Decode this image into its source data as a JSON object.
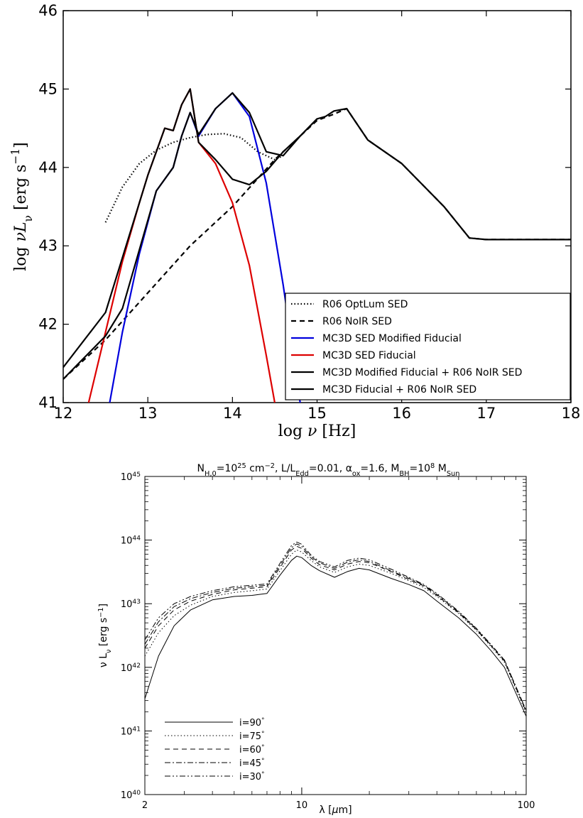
{
  "chart_data": [
    {
      "type": "line",
      "xlabel": "log ν [Hz]",
      "ylabel": "log νL_ν [erg s^-1]",
      "xlim": [
        12,
        18
      ],
      "ylim": [
        41,
        46
      ],
      "xticks": [
        "12",
        "13",
        "14",
        "15",
        "16",
        "17",
        "18"
      ],
      "yticks": [
        "41",
        "42",
        "43",
        "44",
        "45",
        "46"
      ],
      "legend_position": "lower-right",
      "series": [
        {
          "name": "R06 OptLum SED",
          "color": "#000000",
          "style": "dotted",
          "x": [
            12.5,
            12.7,
            12.9,
            13.1,
            13.3,
            13.5,
            13.7,
            13.9,
            14.1,
            14.3,
            14.5,
            14.6
          ],
          "y": [
            43.3,
            43.75,
            44.05,
            44.22,
            44.32,
            44.38,
            44.42,
            44.43,
            44.38,
            44.2,
            44.1,
            44.15
          ]
        },
        {
          "name": "R06 NoIR SED",
          "color": "#000000",
          "style": "dashed",
          "x": [
            12.0,
            12.5,
            13.0,
            13.5,
            14.0,
            14.5,
            15.0,
            15.2,
            15.35,
            15.6,
            16.0,
            16.5,
            16.8,
            17.0,
            18.0
          ],
          "y": [
            41.3,
            41.8,
            42.4,
            43.0,
            43.5,
            44.1,
            44.6,
            44.68,
            44.75,
            44.35,
            44.05,
            43.5,
            43.1,
            43.08,
            43.08
          ]
        },
        {
          "name": "MC3D SED Modified Fiducial",
          "color": "#0000dd",
          "style": "solid",
          "x": [
            12.55,
            12.7,
            12.9,
            13.1,
            13.3,
            13.4,
            13.5,
            13.6,
            13.8,
            14.0,
            14.2,
            14.4,
            14.6,
            14.8
          ],
          "y": [
            41.0,
            41.9,
            42.9,
            43.7,
            44.0,
            44.4,
            44.7,
            44.4,
            44.75,
            44.95,
            44.65,
            43.8,
            42.5,
            41.0
          ]
        },
        {
          "name": "MC3D SED Fiducial",
          "color": "#dd0000",
          "style": "solid",
          "x": [
            12.3,
            12.5,
            12.7,
            12.9,
            13.0,
            13.1,
            13.2,
            13.3,
            13.4,
            13.5,
            13.6,
            13.8,
            14.0,
            14.2,
            14.4,
            14.5
          ],
          "y": [
            41.0,
            41.9,
            42.8,
            43.55,
            43.9,
            44.2,
            44.5,
            44.47,
            44.8,
            45.0,
            44.32,
            44.05,
            43.55,
            42.75,
            41.6,
            41.0
          ]
        },
        {
          "name": "MC3D Modified Fiducial + R06 NoIR SED",
          "color": "#000000",
          "style": "solid",
          "x": [
            12.0,
            12.5,
            12.7,
            12.9,
            13.1,
            13.3,
            13.4,
            13.5,
            13.6,
            13.8,
            14.0,
            14.2,
            14.4,
            14.6,
            14.8,
            15.0,
            15.1,
            15.2,
            15.35,
            15.6,
            16.0,
            16.5,
            16.8,
            17.0,
            18.0
          ],
          "y": [
            41.3,
            41.85,
            42.2,
            42.95,
            43.7,
            44.0,
            44.4,
            44.7,
            44.42,
            44.75,
            44.95,
            44.7,
            44.2,
            44.15,
            44.4,
            44.62,
            44.65,
            44.72,
            44.75,
            44.35,
            44.05,
            43.5,
            43.1,
            43.08,
            43.08
          ]
        },
        {
          "name": "MC3D Fiducial + R06 NoIR SED",
          "color": "#000000",
          "style": "solid",
          "x": [
            12.0,
            12.5,
            12.7,
            12.9,
            13.0,
            13.1,
            13.2,
            13.3,
            13.4,
            13.5,
            13.6,
            13.8,
            14.0,
            14.2,
            14.4,
            14.6,
            14.8,
            15.0
          ],
          "y": [
            41.45,
            42.15,
            42.85,
            43.55,
            43.9,
            44.2,
            44.5,
            44.47,
            44.8,
            45.0,
            44.32,
            44.1,
            43.85,
            43.78,
            43.95,
            44.2,
            44.4,
            44.62
          ]
        }
      ]
    },
    {
      "type": "line",
      "title": "N_H,0=10^25 cm^-2, L/L_Edd=0.01, α_ox=1.6, M_BH=10^8 M_Sun",
      "xlabel": "λ [μm]",
      "ylabel": "ν L_ν [erg s^-1]",
      "xscale": "log",
      "yscale": "log",
      "xlim": [
        2,
        100
      ],
      "ylim": [
        1e+40,
        1e+45
      ],
      "xticks": [
        "2",
        "10",
        "100"
      ],
      "yticks": [
        "10^40",
        "10^41",
        "10^42",
        "10^43",
        "10^44",
        "10^45"
      ],
      "legend_position": "lower-left",
      "series": [
        {
          "name": "i=90°",
          "style": "solid",
          "x": [
            2,
            2.3,
            2.7,
            3.2,
            4,
            5,
            6,
            7,
            8,
            9,
            9.5,
            10,
            11,
            12,
            14,
            16,
            18,
            20,
            25,
            30,
            35,
            40,
            50,
            60,
            70,
            80,
            100
          ],
          "y": [
            3.2e+41,
            1.5e+42,
            4.5e+42,
            8e+42,
            1.15e+43,
            1.3e+43,
            1.35e+43,
            1.45e+43,
            2.8e+43,
            4.8e+43,
            5.6e+43,
            5.3e+43,
            4e+43,
            3.3e+43,
            2.6e+43,
            3.2e+43,
            3.6e+43,
            3.4e+43,
            2.5e+43,
            2e+43,
            1.6e+43,
            1.1e+43,
            6e+42,
            3.3e+42,
            1.8e+42,
            1e+42,
            1.7e+41
          ]
        },
        {
          "name": "i=75°",
          "style": "dotted",
          "x": [
            2,
            2.3,
            2.7,
            3.2,
            4,
            5,
            6,
            7,
            8,
            9,
            9.5,
            10,
            11,
            12,
            14,
            16,
            18,
            20,
            25,
            30,
            35,
            40,
            50,
            60,
            70,
            80,
            100
          ],
          "y": [
            1.5e+42,
            3.5e+42,
            6.5e+42,
            9.5e+42,
            1.3e+43,
            1.5e+43,
            1.6e+43,
            1.7e+43,
            3.3e+43,
            6e+43,
            7e+43,
            6.5e+43,
            4.8e+43,
            3.8e+43,
            3.1e+43,
            3.8e+43,
            4.2e+43,
            4e+43,
            3e+43,
            2.3e+43,
            1.8e+43,
            1.3e+43,
            7e+42,
            3.8e+42,
            2.1e+42,
            1.2e+42,
            1.9e+41
          ]
        },
        {
          "name": "i=60°",
          "style": "dashed",
          "x": [
            2,
            2.3,
            2.7,
            3.2,
            4,
            5,
            6,
            7,
            8,
            9,
            9.5,
            10,
            11,
            12,
            14,
            16,
            18,
            20,
            25,
            30,
            35,
            40,
            50,
            60,
            70,
            80,
            100
          ],
          "y": [
            2e+42,
            4.5e+42,
            8e+42,
            1.1e+43,
            1.4e+43,
            1.65e+43,
            1.75e+43,
            1.85e+43,
            3.7e+43,
            7e+43,
            8e+43,
            7.4e+43,
            5.2e+43,
            4.1e+43,
            3.4e+43,
            4.2e+43,
            4.6e+43,
            4.4e+43,
            3.2e+43,
            2.4e+43,
            1.9e+43,
            1.35e+43,
            7.2e+42,
            3.9e+42,
            2.15e+42,
            1.25e+42,
            2e+41
          ]
        },
        {
          "name": "i=45°",
          "style": "dashdot",
          "x": [
            2,
            2.3,
            2.7,
            3.2,
            4,
            5,
            6,
            7,
            8,
            9,
            9.5,
            10,
            11,
            12,
            14,
            16,
            18,
            20,
            25,
            30,
            35,
            40,
            50,
            60,
            70,
            80,
            100
          ],
          "y": [
            2.3e+42,
            5.2e+42,
            9e+42,
            1.2e+43,
            1.5e+43,
            1.75e+43,
            1.85e+43,
            1.95e+43,
            4e+43,
            7.6e+43,
            8.7e+43,
            8e+43,
            5.5e+43,
            4.4e+43,
            3.6e+43,
            4.5e+43,
            4.9e+43,
            4.6e+43,
            3.3e+43,
            2.5e+43,
            1.95e+43,
            1.4e+43,
            7.4e+42,
            4e+42,
            2.2e+42,
            1.3e+42,
            2.1e+41
          ]
        },
        {
          "name": "i=30°",
          "style": "dashdotdot",
          "x": [
            2,
            2.3,
            2.7,
            3.2,
            4,
            5,
            6,
            7,
            8,
            9,
            9.5,
            10,
            11,
            12,
            14,
            16,
            18,
            20,
            25,
            30,
            35,
            40,
            50,
            60,
            70,
            80,
            100
          ],
          "y": [
            2.7e+42,
            6e+42,
            1e+43,
            1.3e+43,
            1.6e+43,
            1.85e+43,
            1.95e+43,
            2.05e+43,
            4.3e+43,
            8.2e+43,
            9.3e+43,
            8.6e+43,
            5.8e+43,
            4.6e+43,
            3.8e+43,
            4.8e+43,
            5.2e+43,
            4.9e+43,
            3.5e+43,
            2.6e+43,
            2e+43,
            1.45e+43,
            7.6e+42,
            4.1e+42,
            2.25e+42,
            1.3e+42,
            2.1e+41
          ]
        }
      ]
    }
  ]
}
